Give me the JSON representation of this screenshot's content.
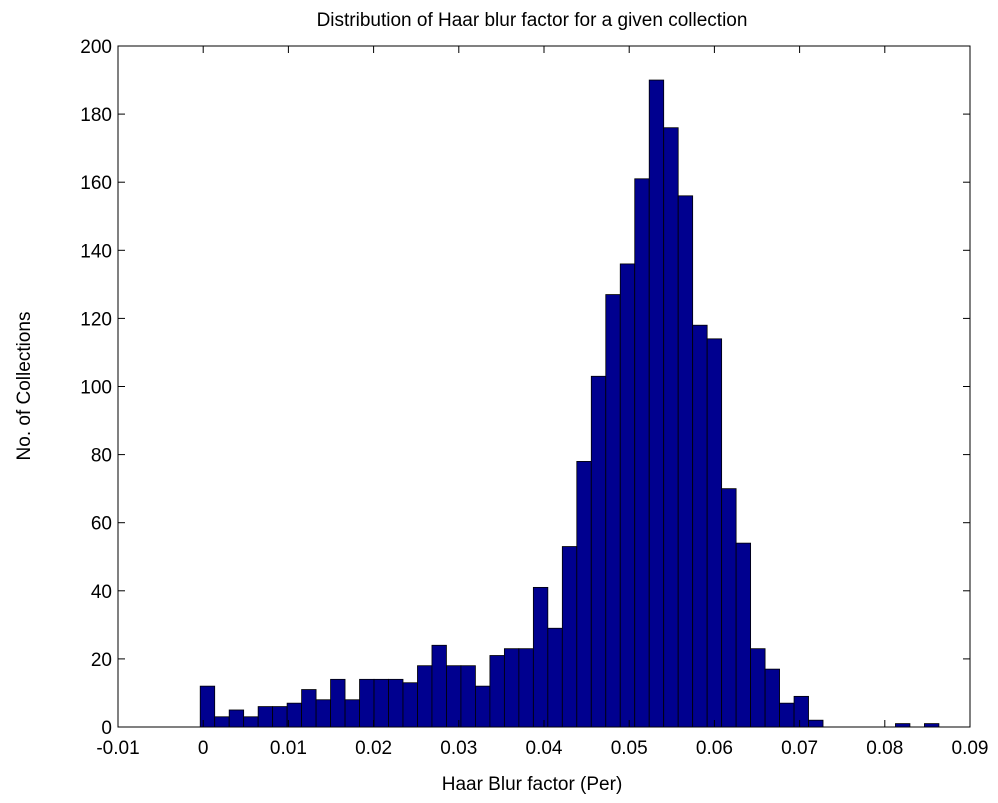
{
  "chart_data": {
    "type": "bar",
    "title": "Distribution of Haar blur factor for a given collection",
    "xlabel": "Haar Blur factor (Per)",
    "ylabel": "No. of Collections",
    "xlim": [
      -0.01,
      0.09
    ],
    "ylim": [
      0,
      200
    ],
    "xticks": [
      -0.01,
      0,
      0.01,
      0.02,
      0.03,
      0.04,
      0.05,
      0.06,
      0.07,
      0.08,
      0.09
    ],
    "xtick_labels": [
      "-0.01",
      "0",
      "0.01",
      "0.02",
      "0.03",
      "0.04",
      "0.05",
      "0.06",
      "0.07",
      "0.08",
      "0.09"
    ],
    "yticks": [
      0,
      20,
      40,
      60,
      80,
      100,
      120,
      140,
      160,
      180,
      200
    ],
    "ytick_labels": [
      "0",
      "20",
      "40",
      "60",
      "80",
      "100",
      "120",
      "140",
      "160",
      "180",
      "200"
    ],
    "grid": false,
    "bar_color": "#00008f",
    "bin_width": 0.0017,
    "bin_centers": [
      0.0005,
      0.0022,
      0.0039,
      0.0056,
      0.0073,
      0.009,
      0.0107,
      0.0124,
      0.0141,
      0.0158,
      0.0175,
      0.0192,
      0.0209,
      0.0226,
      0.0243,
      0.026,
      0.0277,
      0.0294,
      0.0311,
      0.0328,
      0.0345,
      0.0362,
      0.0379,
      0.0396,
      0.0413,
      0.043,
      0.0447,
      0.0464,
      0.0481,
      0.0498,
      0.0515,
      0.0532,
      0.0549,
      0.0566,
      0.0583,
      0.06,
      0.0617,
      0.0634,
      0.0651,
      0.0668,
      0.0685,
      0.0702,
      0.0719,
      0.0736,
      0.0753,
      0.077,
      0.0787,
      0.0804,
      0.0821,
      0.0838,
      0.0855,
      0.0872
    ],
    "values": [
      12,
      3,
      5,
      3,
      6,
      6,
      7,
      11,
      8,
      14,
      8,
      14,
      14,
      14,
      13,
      18,
      24,
      18,
      18,
      12,
      21,
      23,
      23,
      41,
      29,
      53,
      78,
      103,
      127,
      136,
      161,
      190,
      176,
      156,
      118,
      114,
      70,
      54,
      23,
      17,
      7,
      9,
      2,
      0,
      0,
      0,
      0,
      0,
      1,
      0,
      1,
      0
    ]
  }
}
